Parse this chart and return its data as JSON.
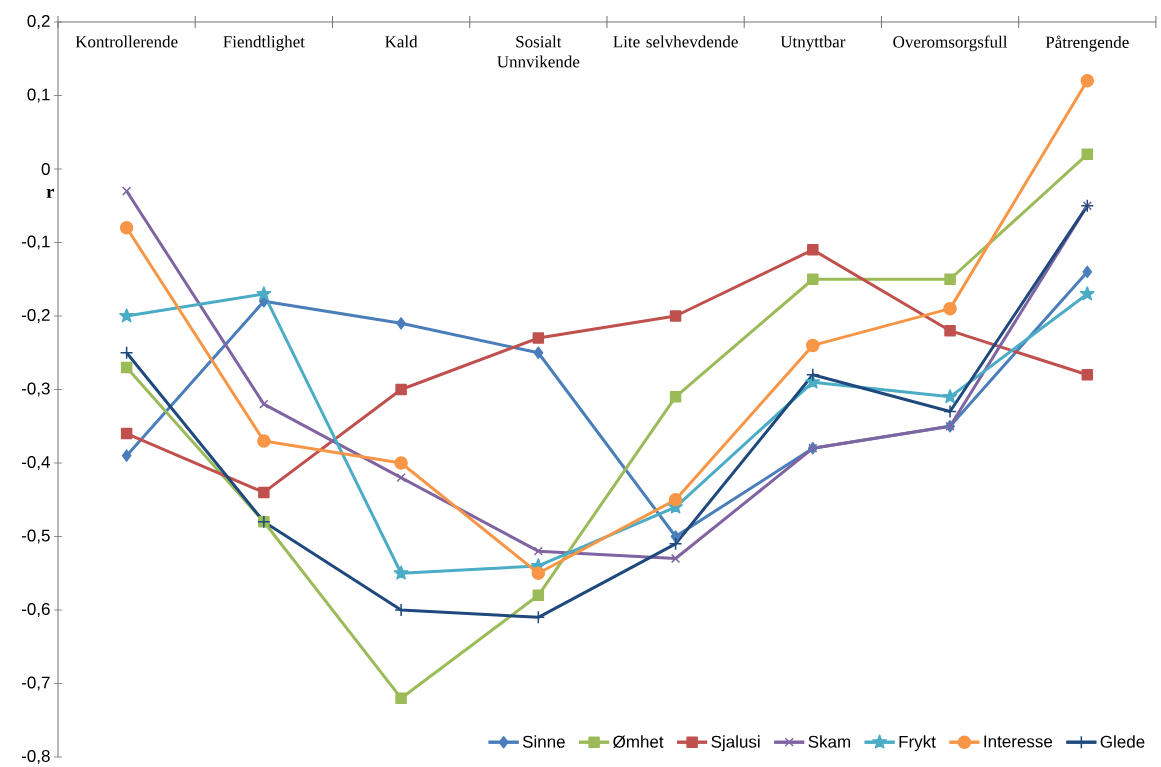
{
  "chart_data": {
    "type": "line",
    "ylabel": "r",
    "categories": [
      "Kontrollerende",
      "Fiendtlighet",
      "Kald",
      "Sosialt Unnvikende",
      "Lite selvhevdende",
      "Utnyttbar",
      "Overomsorgsfull",
      "Påtrengende"
    ],
    "series": [
      {
        "name": "Sinne",
        "color": "#4a7ebb",
        "marker": "diamond",
        "values": [
          -0.39,
          -0.18,
          -0.21,
          -0.25,
          -0.5,
          -0.38,
          -0.35,
          -0.14
        ]
      },
      {
        "name": "Ømhet",
        "color": "#9bbb59",
        "marker": "square",
        "values": [
          -0.27,
          -0.48,
          -0.72,
          -0.58,
          -0.31,
          -0.15,
          -0.15,
          0.02
        ]
      },
      {
        "name": "Sjalusi",
        "color": "#c0504d",
        "marker": "square",
        "values": [
          -0.36,
          -0.44,
          -0.3,
          -0.23,
          -0.2,
          -0.11,
          -0.22,
          -0.28
        ]
      },
      {
        "name": "Skam",
        "color": "#8064a2",
        "marker": "cross",
        "values": [
          -0.03,
          -0.32,
          -0.42,
          -0.52,
          -0.53,
          -0.38,
          -0.35,
          -0.05
        ]
      },
      {
        "name": "Frykt",
        "color": "#4bacc6",
        "marker": "star",
        "values": [
          -0.2,
          -0.17,
          -0.55,
          -0.54,
          -0.46,
          -0.29,
          -0.31,
          -0.17
        ]
      },
      {
        "name": "Interesse",
        "color": "#f79646",
        "marker": "circle",
        "values": [
          -0.08,
          -0.37,
          -0.4,
          -0.55,
          -0.45,
          -0.24,
          -0.19,
          0.12
        ]
      },
      {
        "name": "Glede",
        "color": "#1f497d",
        "marker": "plus",
        "values": [
          -0.25,
          -0.48,
          -0.6,
          -0.61,
          -0.51,
          -0.28,
          -0.33,
          -0.05
        ]
      }
    ],
    "ylim": [
      -0.8,
      0.2
    ],
    "yticks": [
      {
        "value": -0.8,
        "label": "-0,8"
      },
      {
        "value": -0.7,
        "label": "-0,7"
      },
      {
        "value": -0.6,
        "label": "-0,6"
      },
      {
        "value": -0.5,
        "label": "-0,5"
      },
      {
        "value": -0.4,
        "label": "-0,4"
      },
      {
        "value": -0.3,
        "label": "-0,3"
      },
      {
        "value": -0.2,
        "label": "-0,2"
      },
      {
        "value": -0.1,
        "label": "-0,1"
      },
      {
        "value": 0,
        "label": "0"
      },
      {
        "value": 0.1,
        "label": "0,1"
      },
      {
        "value": 0.2,
        "label": "0,2"
      }
    ],
    "grid": false,
    "legend": "bottom right",
    "line_style": "solid"
  }
}
